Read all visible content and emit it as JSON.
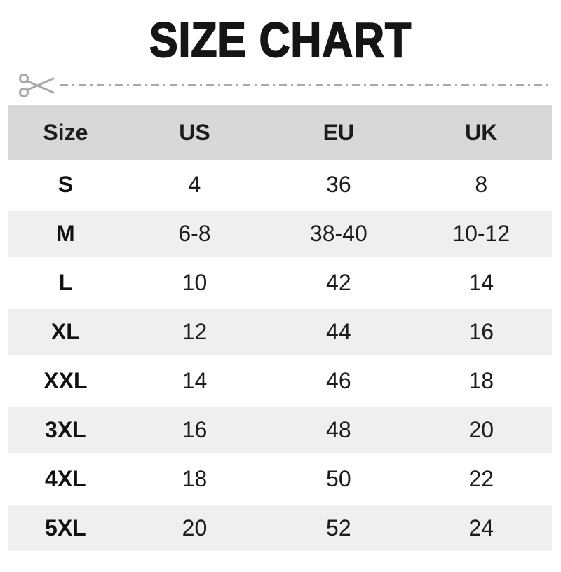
{
  "title": "SIZE CHART",
  "icons": {
    "scissors": "scissors-icon"
  },
  "colors": {
    "header_bg": "#d8d8d8",
    "stripe_bg": "#efefef",
    "cut_line_gray": "#a9a9a9",
    "text": "#111111"
  },
  "chart_data": {
    "type": "table",
    "title": "SIZE CHART",
    "columns": [
      "Size",
      "US",
      "EU",
      "UK"
    ],
    "rows": [
      [
        "S",
        "4",
        "36",
        "8"
      ],
      [
        "M",
        "6-8",
        "38-40",
        "10-12"
      ],
      [
        "L",
        "10",
        "42",
        "14"
      ],
      [
        "XL",
        "12",
        "44",
        "16"
      ],
      [
        "XXL",
        "14",
        "46",
        "18"
      ],
      [
        "3XL",
        "16",
        "48",
        "20"
      ],
      [
        "4XL",
        "18",
        "50",
        "22"
      ],
      [
        "5XL",
        "20",
        "52",
        "24"
      ]
    ],
    "layout_hints": {
      "header_background": "#d8d8d8",
      "zebra_striping": "odd data rows shaded",
      "stripe_background": "#efefef",
      "all_text_centered": true
    }
  }
}
